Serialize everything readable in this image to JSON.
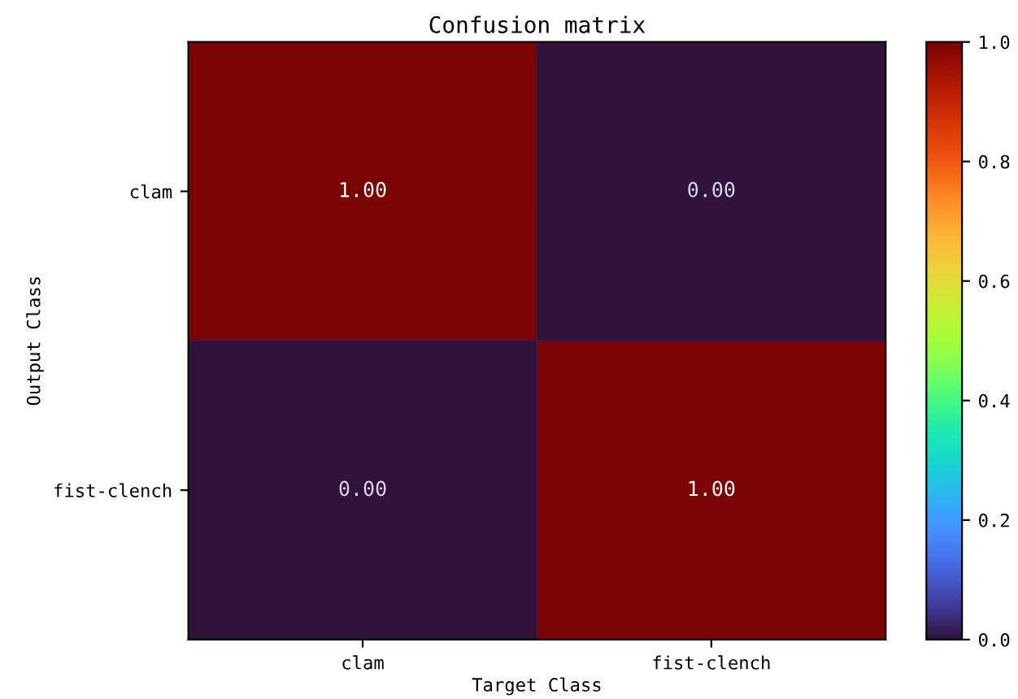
{
  "chart_data": {
    "type": "heatmap",
    "title": "Confusion matrix",
    "xlabel": "Target Class",
    "ylabel": "Output Class",
    "categories": [
      "clam",
      "fist-clench"
    ],
    "y_categories": [
      "clam",
      "fist-clench"
    ],
    "cells": [
      [
        1.0,
        0.0
      ],
      [
        0.0,
        1.0
      ]
    ],
    "cell_labels": [
      [
        "1.00",
        "0.00"
      ],
      [
        "0.00",
        "1.00"
      ]
    ],
    "clim": [
      0,
      1
    ],
    "cticks": [
      {
        "value": 0,
        "label": "0.0"
      },
      {
        "value": 0.2,
        "label": "0.2"
      },
      {
        "value": 0.4,
        "label": "0.4"
      },
      {
        "value": 0.6,
        "label": "0.6"
      },
      {
        "value": 0.8,
        "label": "0.8"
      },
      {
        "value": 1,
        "label": "1.0"
      }
    ]
  }
}
